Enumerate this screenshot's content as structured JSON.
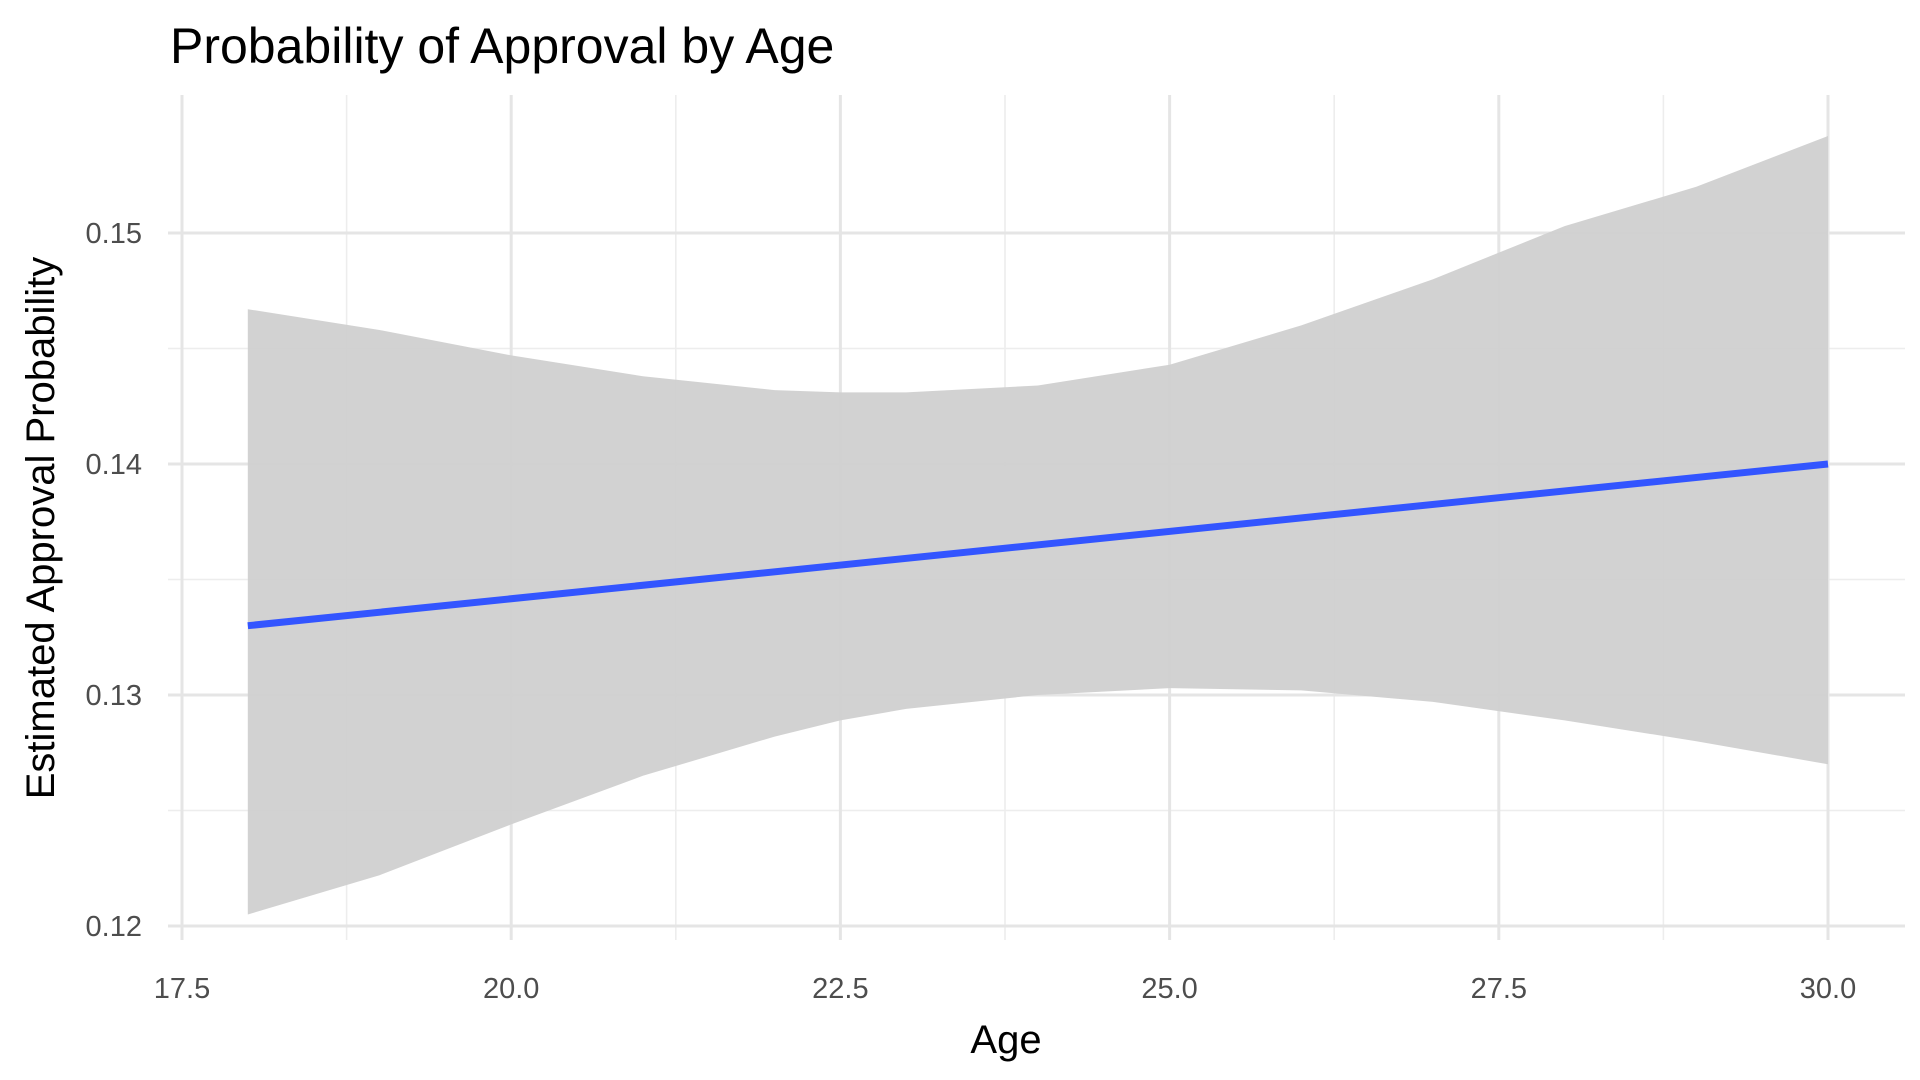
{
  "chart_data": {
    "type": "line",
    "title": "Probability of Approval by Age",
    "xlabel": "Age",
    "ylabel": "Estimated Approval Probability",
    "xlim": [
      17.5,
      30.5
    ],
    "ylim": [
      0.12,
      0.155
    ],
    "x_ticks": [
      "17.5",
      "20.0",
      "22.5",
      "25.0",
      "27.5",
      "30.0"
    ],
    "y_ticks": [
      "0.12",
      "0.13",
      "0.14",
      "0.15"
    ],
    "grid": true,
    "legend": "none",
    "series": [
      {
        "color": "#3355ff",
        "x": [
          18,
          30
        ],
        "y": [
          0.133,
          0.14
        ]
      }
    ],
    "confidence_band": {
      "color": "#d0d0d0",
      "x": [
        18,
        19,
        20,
        21,
        22,
        22.5,
        23,
        24,
        25,
        26,
        27,
        28,
        29,
        30
      ],
      "lower": [
        0.1205,
        0.1222,
        0.1244,
        0.1265,
        0.1282,
        0.1289,
        0.1294,
        0.13,
        0.1303,
        0.1302,
        0.1297,
        0.1289,
        0.128,
        0.127
      ],
      "upper": [
        0.1467,
        0.1458,
        0.1447,
        0.1438,
        0.1432,
        0.1431,
        0.1431,
        0.1434,
        0.1443,
        0.146,
        0.148,
        0.1503,
        0.152,
        0.1542
      ]
    }
  }
}
